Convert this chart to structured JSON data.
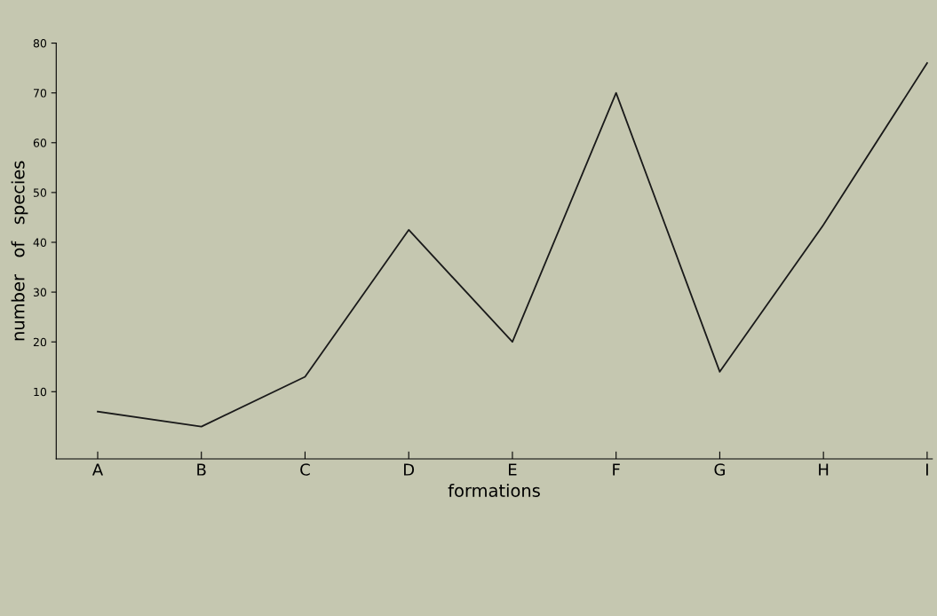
{
  "chart_data": {
    "type": "line",
    "xlabel": "formations",
    "ylabel": "number   of   species",
    "categories": [
      "A",
      "B",
      "C",
      "D",
      "E",
      "F",
      "G",
      "H",
      "I"
    ],
    "series": [
      {
        "color": "#1a1a1a",
        "values": [
          6,
          3,
          13,
          42.5,
          20,
          70,
          14,
          43.5,
          76
        ]
      }
    ],
    "ylim": [
      -3.5,
      80
    ],
    "yticks": [
      10,
      20,
      30,
      40,
      50,
      60,
      70,
      80
    ],
    "grid": false,
    "legend": false,
    "marker": "none",
    "line_style": "solid"
  }
}
